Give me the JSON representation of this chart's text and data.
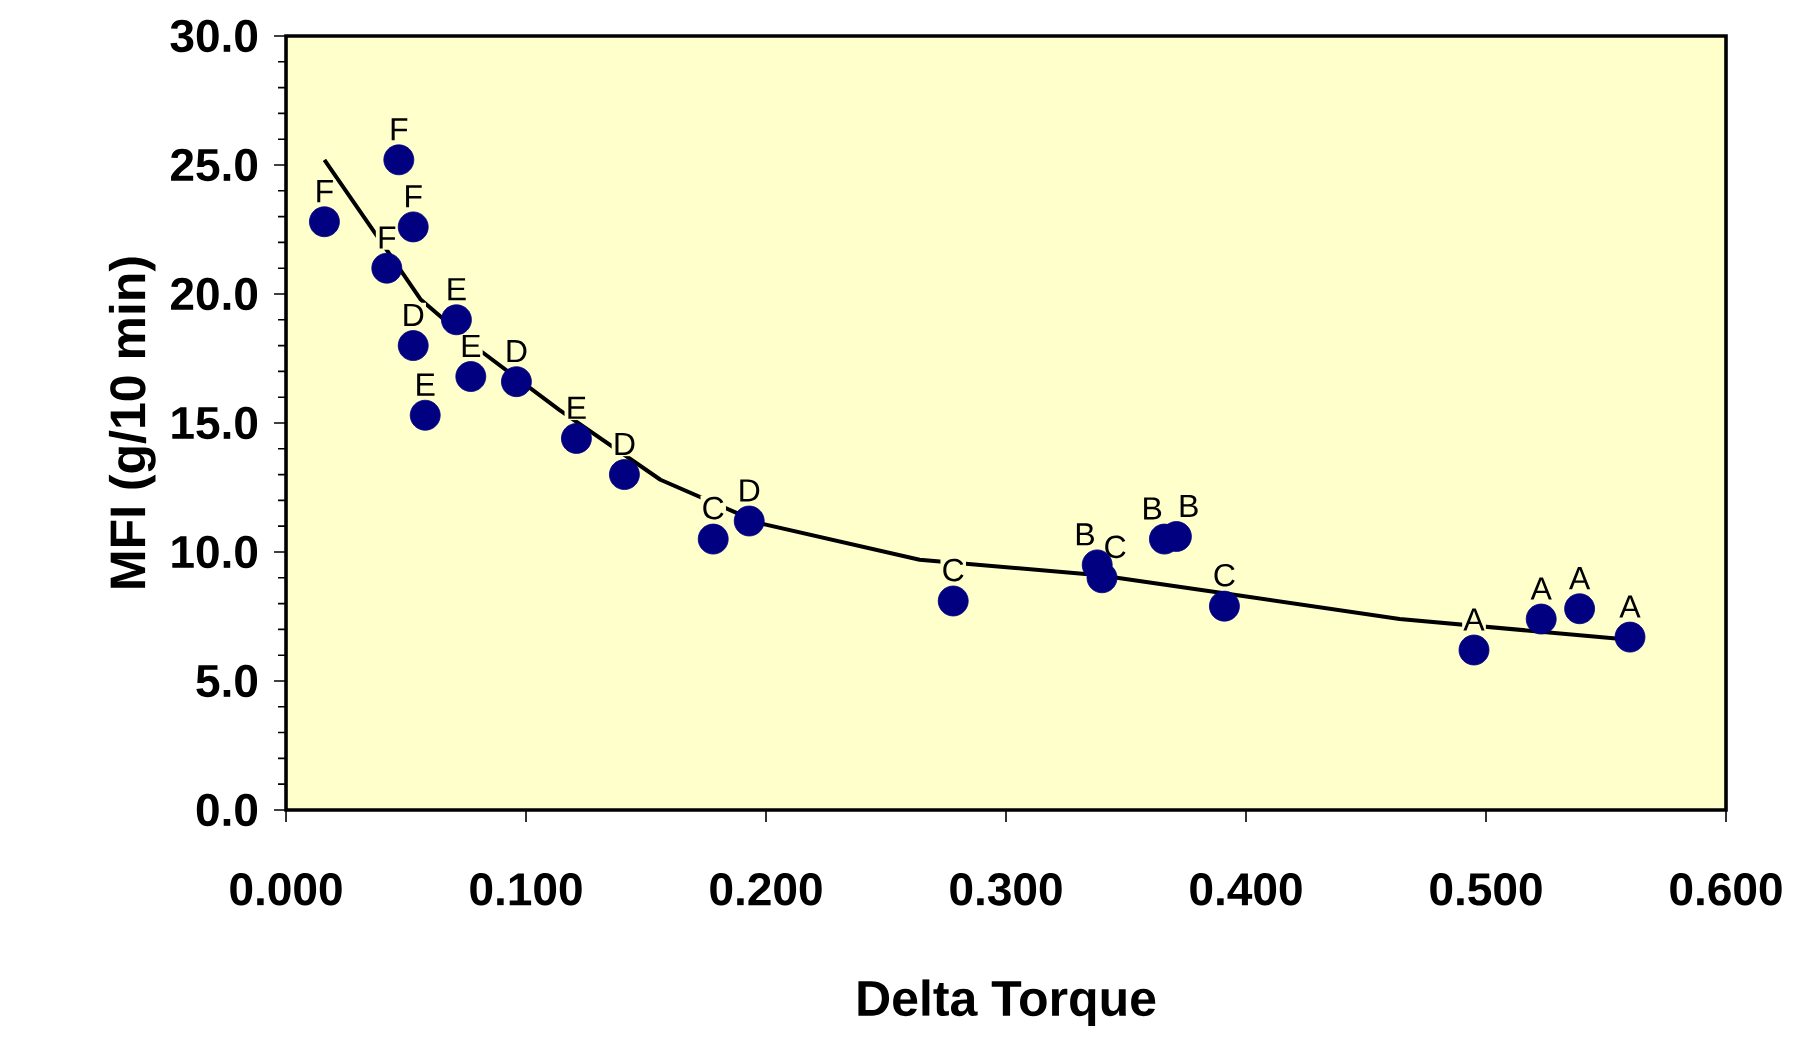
{
  "chart_data": {
    "type": "scatter",
    "xlabel": "Delta Torque",
    "ylabel": "MFI (g/10 min)",
    "xlim": [
      0,
      0.6
    ],
    "ylim": [
      0,
      30
    ],
    "xticks": [
      {
        "value": 0,
        "label": "0.000"
      },
      {
        "value": 0.1,
        "label": "0.100"
      },
      {
        "value": 0.2,
        "label": "0.200"
      },
      {
        "value": 0.3,
        "label": "0.300"
      },
      {
        "value": 0.4,
        "label": "0.400"
      },
      {
        "value": 0.5,
        "label": "0.500"
      },
      {
        "value": 0.6,
        "label": "0.600"
      }
    ],
    "yticks": [
      {
        "value": 0,
        "label": "0.0"
      },
      {
        "value": 5,
        "label": "5.0"
      },
      {
        "value": 10,
        "label": "10.0"
      },
      {
        "value": 15,
        "label": "15.0"
      },
      {
        "value": 20,
        "label": "20.0"
      },
      {
        "value": 25,
        "label": "25.0"
      },
      {
        "value": 30,
        "label": "30.0"
      }
    ],
    "grid": false,
    "series": [
      {
        "type": "scatter",
        "color": "#000080",
        "marker": "circle",
        "x": [
          0.016,
          0.047,
          0.053,
          0.042,
          0.053,
          0.071,
          0.077,
          0.096,
          0.058,
          0.121,
          0.141,
          0.178,
          0.193,
          0.278,
          0.338,
          0.34,
          0.366,
          0.371,
          0.391,
          0.495,
          0.523,
          0.539,
          0.56
        ],
        "values": [
          22.8,
          25.2,
          22.6,
          21.0,
          18.0,
          19.0,
          16.8,
          16.6,
          15.3,
          14.4,
          13.0,
          10.5,
          11.2,
          8.1,
          9.5,
          9.0,
          10.5,
          10.6,
          7.9,
          6.2,
          7.4,
          7.8,
          6.7
        ]
      },
      {
        "type": "line",
        "color": "#000000",
        "marker": "none",
        "line_style": "solid",
        "x": [
          0.016,
          0.042,
          0.056,
          0.081,
          0.114,
          0.156,
          0.198,
          0.264,
          0.339,
          0.398,
          0.464,
          0.56
        ],
        "values": [
          25.2,
          21.7,
          19.8,
          17.8,
          15.5,
          12.8,
          11.1,
          9.7,
          9.1,
          8.3,
          7.4,
          6.6
        ]
      }
    ],
    "annotations": [
      {
        "text": "F",
        "x": 0.016,
        "y": 22.8
      },
      {
        "text": "F",
        "x": 0.047,
        "y": 25.2
      },
      {
        "text": "F",
        "x": 0.053,
        "y": 22.6
      },
      {
        "text": "F",
        "x": 0.042,
        "y": 21.0
      },
      {
        "text": "D",
        "x": 0.053,
        "y": 18.0
      },
      {
        "text": "E",
        "x": 0.071,
        "y": 19.0
      },
      {
        "text": "E",
        "x": 0.077,
        "y": 16.8
      },
      {
        "text": "D",
        "x": 0.096,
        "y": 16.6
      },
      {
        "text": "E",
        "x": 0.058,
        "y": 15.3
      },
      {
        "text": "E",
        "x": 0.121,
        "y": 14.4
      },
      {
        "text": "D",
        "x": 0.141,
        "y": 13.0
      },
      {
        "text": "C",
        "x": 0.178,
        "y": 10.5
      },
      {
        "text": "D",
        "x": 0.193,
        "y": 11.2
      },
      {
        "text": "C",
        "x": 0.278,
        "y": 8.1
      },
      {
        "text": "B",
        "x": 0.338,
        "y": 9.5
      },
      {
        "text": "C",
        "x": 0.34,
        "y": 9.0
      },
      {
        "text": "B",
        "x": 0.366,
        "y": 10.5
      },
      {
        "text": "B",
        "x": 0.371,
        "y": 10.6
      },
      {
        "text": "C",
        "x": 0.391,
        "y": 7.9
      },
      {
        "text": "A",
        "x": 0.495,
        "y": 6.2
      },
      {
        "text": "A",
        "x": 0.523,
        "y": 7.4
      },
      {
        "text": "A",
        "x": 0.539,
        "y": 7.8
      },
      {
        "text": "A",
        "x": 0.56,
        "y": 6.7
      }
    ]
  }
}
